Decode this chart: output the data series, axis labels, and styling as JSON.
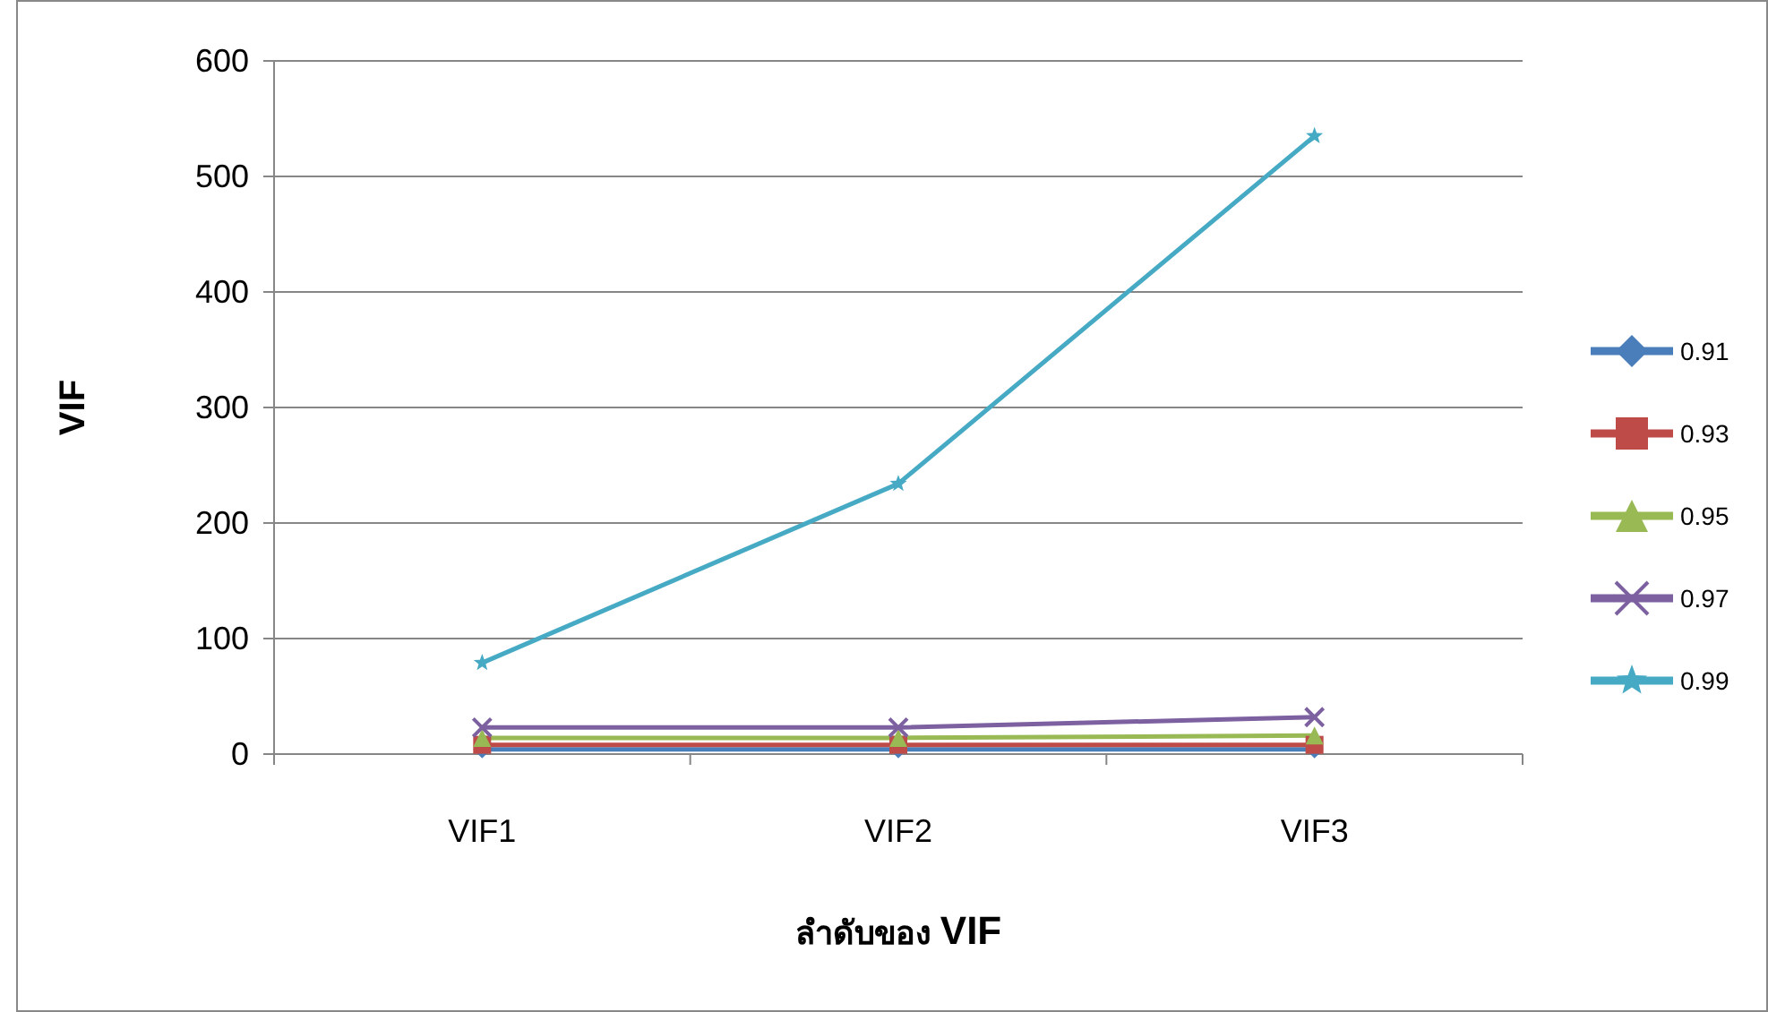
{
  "chart_data": {
    "type": "line",
    "xlabel": "ลำดับของ **VIF**",
    "ylabel": "VIF",
    "categories": [
      "VIF1",
      "VIF2",
      "VIF3"
    ],
    "ylim": [
      0,
      600
    ],
    "yticks": [
      0,
      100,
      200,
      300,
      400,
      500,
      600
    ],
    "grid": "y",
    "legend": "right",
    "series": [
      {
        "name": "0.91",
        "color": "#4a7ebb",
        "marker": "diamond",
        "values": [
          4,
          4,
          4
        ]
      },
      {
        "name": "0.93",
        "color": "#be4b48",
        "marker": "square",
        "values": [
          8,
          8,
          8
        ]
      },
      {
        "name": "0.95",
        "color": "#98b954",
        "marker": "triangle",
        "values": [
          14,
          14,
          16
        ]
      },
      {
        "name": "0.97",
        "color": "#7d60a0",
        "marker": "cross",
        "values": [
          23,
          23,
          32
        ]
      },
      {
        "name": "0.99",
        "color": "#46aac5",
        "marker": "star",
        "values": [
          79,
          234,
          535
        ]
      }
    ]
  }
}
